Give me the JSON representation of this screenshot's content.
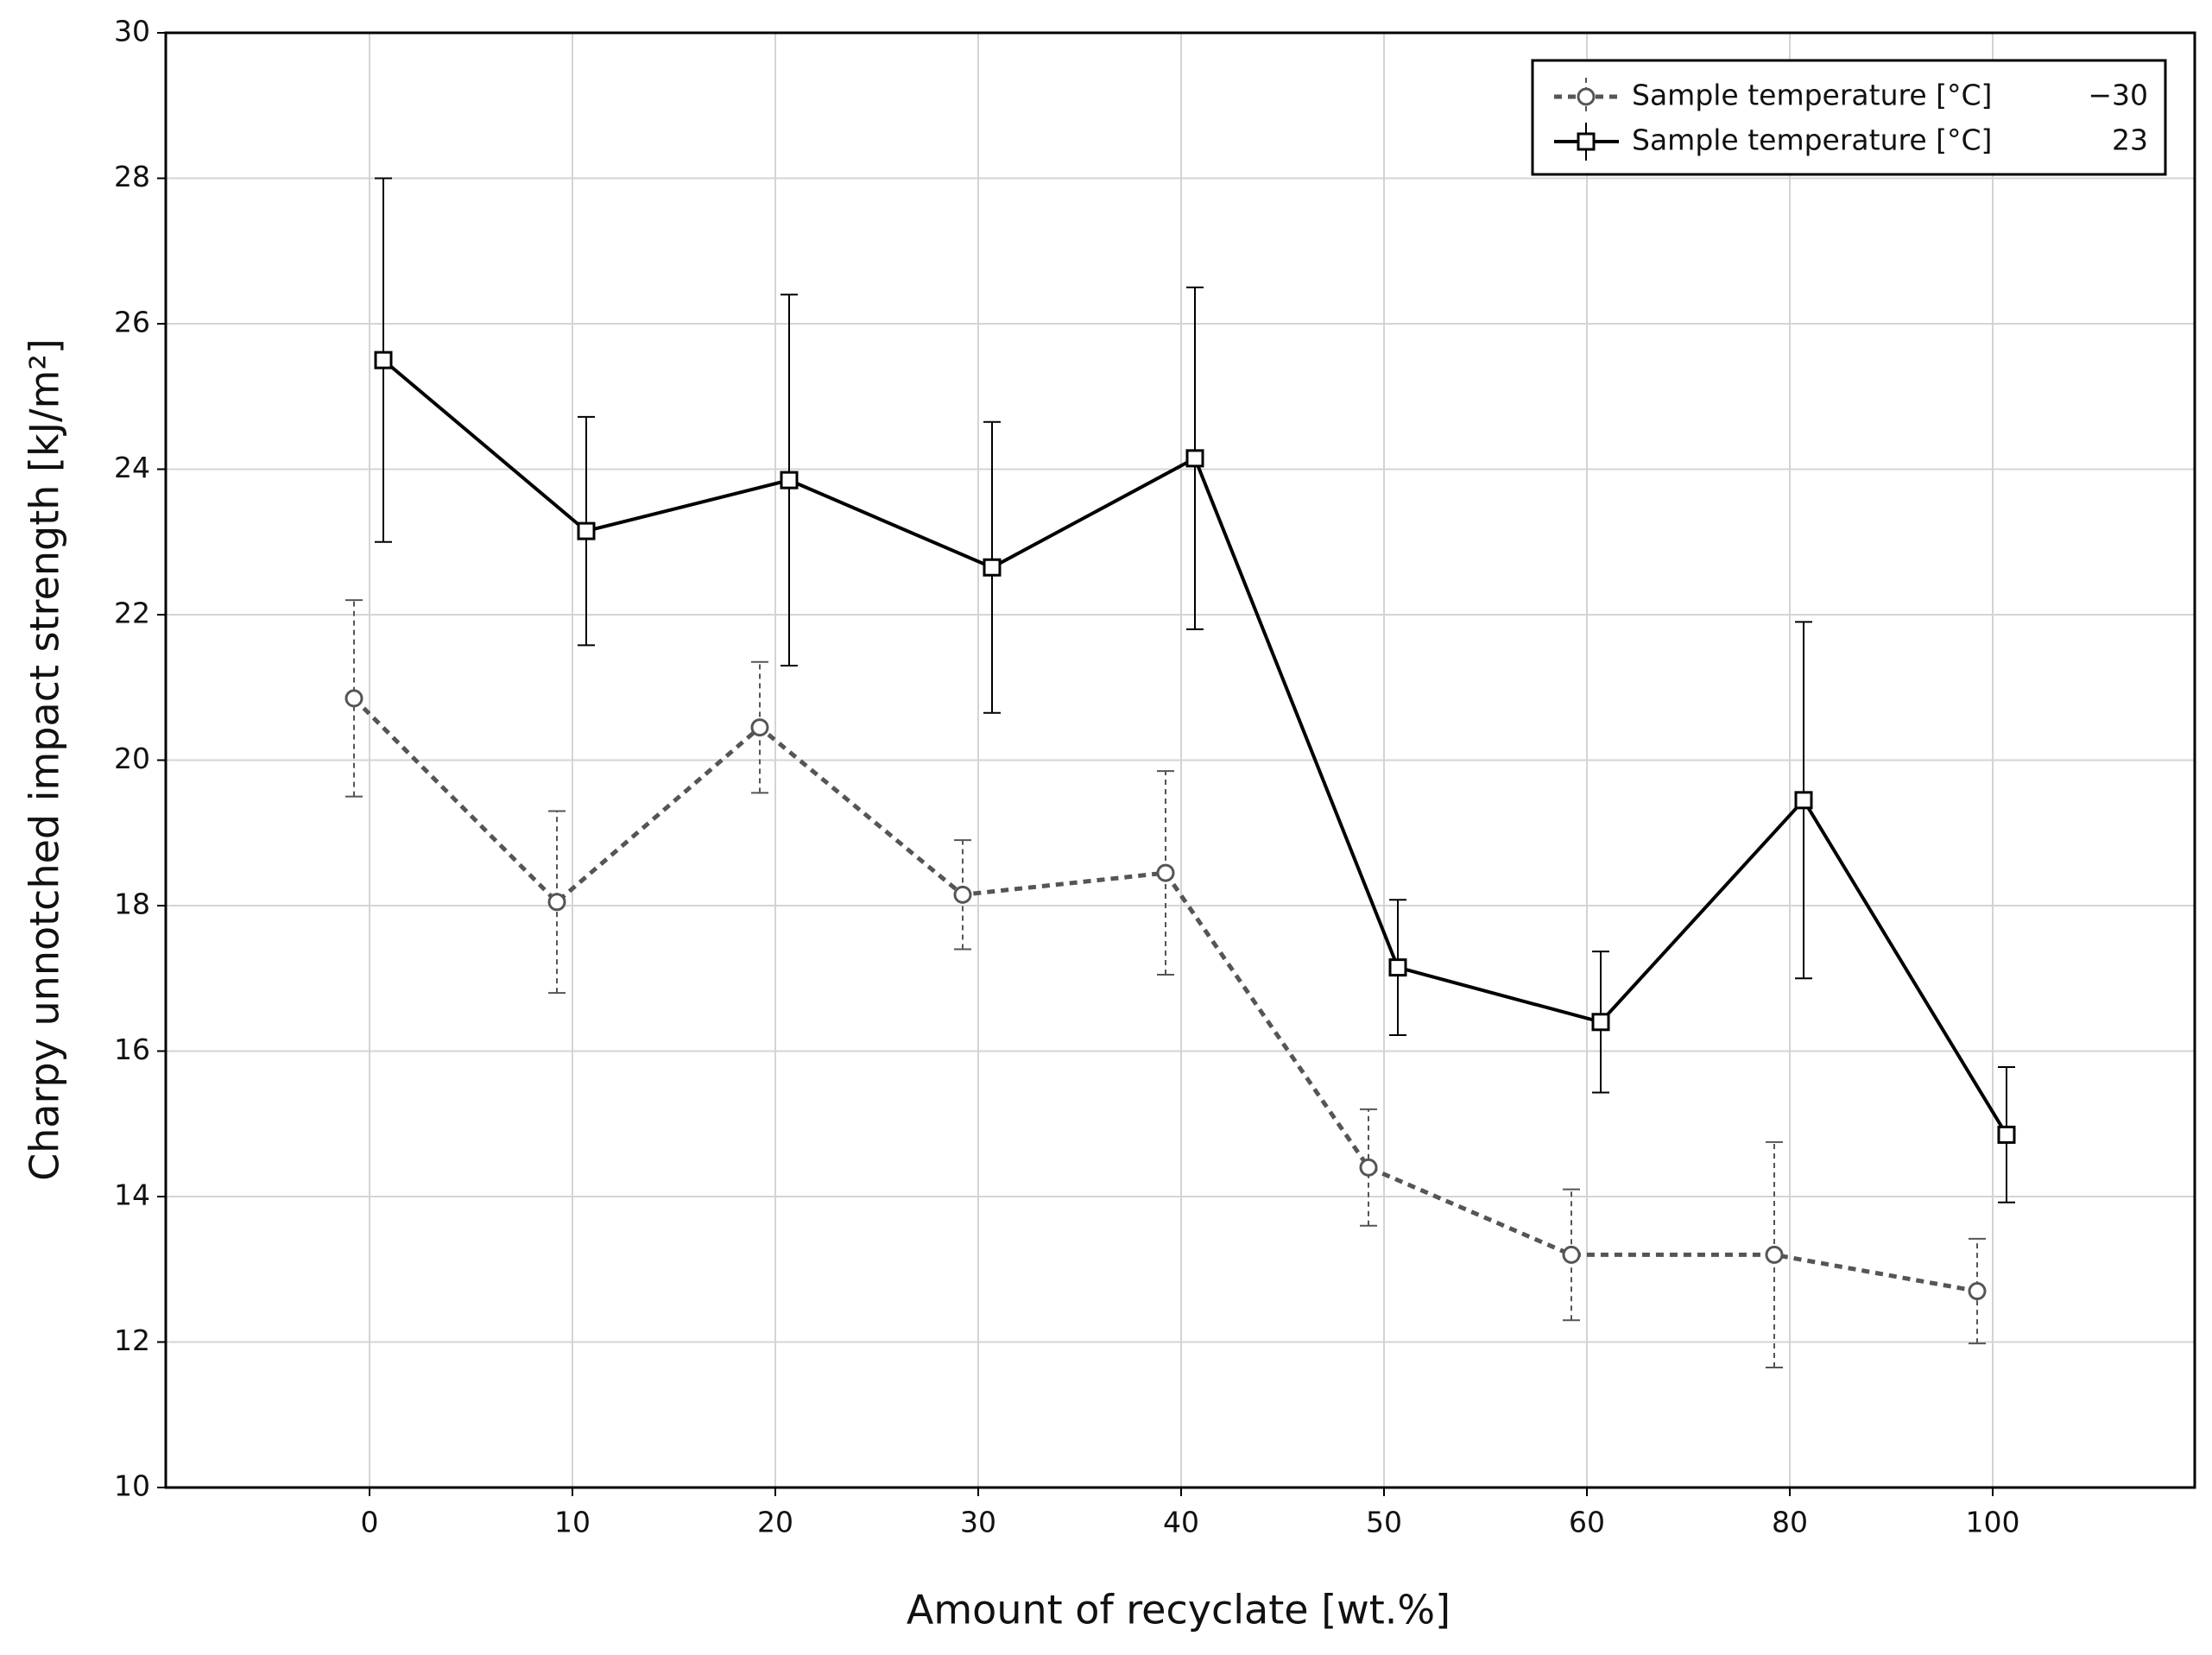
{
  "chart_data": {
    "type": "line",
    "x_label": "Amount of recyclate [wt.%]",
    "y_label": "Charpy unnotched impact strength [kJ/m²]",
    "categories": [
      "0",
      "10",
      "20",
      "30",
      "40",
      "50",
      "60",
      "80",
      "100"
    ],
    "ylim": [
      10,
      30
    ],
    "yticks": [
      10,
      12,
      14,
      16,
      18,
      20,
      22,
      24,
      26,
      28,
      30
    ],
    "grid": true,
    "legend": "upper right",
    "series": [
      {
        "name": "Sample temperature [°C]",
        "label": "−30",
        "color": "#555555",
        "dash": true,
        "marker": "circle",
        "values": [
          20.85,
          18.05,
          20.45,
          18.15,
          18.45,
          14.4,
          13.2,
          13.2,
          12.7
        ],
        "errors": [
          1.35,
          1.25,
          0.9,
          0.75,
          1.4,
          0.8,
          0.9,
          1.55,
          0.72
        ]
      },
      {
        "name": "Sample temperature [°C]",
        "label": "23",
        "color": "#000000",
        "dash": false,
        "marker": "square",
        "values": [
          25.5,
          23.15,
          23.85,
          22.65,
          24.15,
          17.15,
          16.4,
          19.45,
          14.85
        ],
        "errors": [
          2.5,
          1.57,
          2.55,
          2.0,
          2.35,
          0.93,
          0.97,
          2.45,
          0.93
        ]
      }
    ]
  }
}
